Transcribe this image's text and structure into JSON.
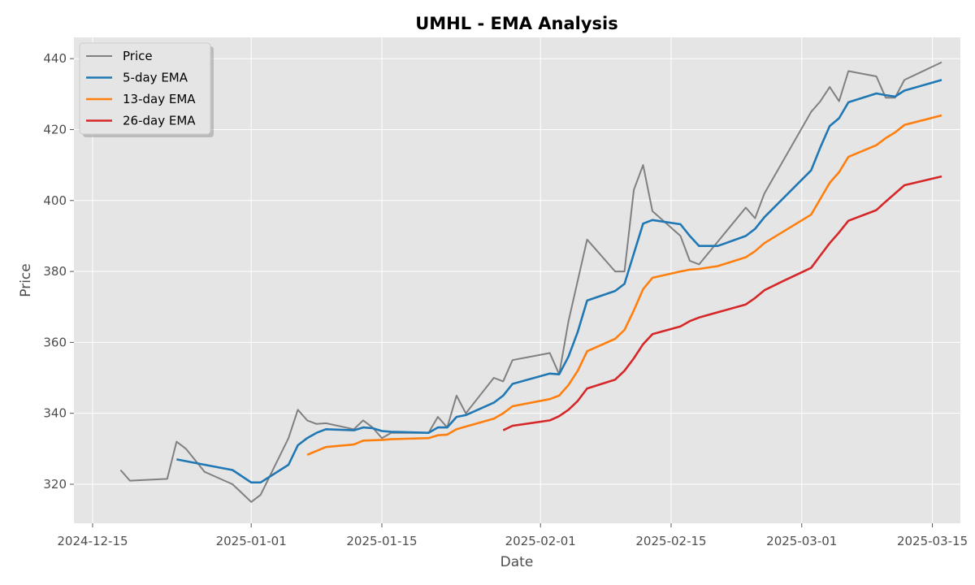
{
  "chart_data": {
    "type": "line",
    "title": "UMHL - EMA Analysis",
    "xlabel": "Date",
    "ylabel": "Price",
    "xlim": [
      "2024-12-13",
      "2025-03-18"
    ],
    "ylim": [
      309,
      446
    ],
    "x_ticks": [
      "2024-12-15",
      "2025-01-01",
      "2025-01-15",
      "2025-02-01",
      "2025-02-15",
      "2025-03-01",
      "2025-03-15"
    ],
    "y_ticks": [
      320,
      340,
      360,
      380,
      400,
      420,
      440
    ],
    "grid": true,
    "legend_position": "top-left",
    "series": [
      {
        "name": "Price",
        "color": "#808080",
        "points": [
          [
            "2024-12-18",
            324
          ],
          [
            "2024-12-19",
            321
          ],
          [
            "2024-12-23",
            321.5
          ],
          [
            "2024-12-24",
            332
          ],
          [
            "2024-12-25",
            330
          ],
          [
            "2024-12-27",
            323.5
          ],
          [
            "2024-12-30",
            320
          ],
          [
            "2024-12-31",
            317.5
          ],
          [
            "2025-01-01",
            315
          ],
          [
            "2025-01-02",
            317
          ],
          [
            "2025-01-05",
            333
          ],
          [
            "2025-01-06",
            341
          ],
          [
            "2025-01-07",
            338
          ],
          [
            "2025-01-08",
            337
          ],
          [
            "2025-01-09",
            337.2
          ],
          [
            "2025-01-12",
            335.5
          ],
          [
            "2025-01-13",
            338
          ],
          [
            "2025-01-14",
            336
          ],
          [
            "2025-01-15",
            333
          ],
          [
            "2025-01-16",
            334.5
          ],
          [
            "2025-01-20",
            334.5
          ],
          [
            "2025-01-21",
            339
          ],
          [
            "2025-01-22",
            336
          ],
          [
            "2025-01-23",
            345
          ],
          [
            "2025-01-24",
            340
          ],
          [
            "2025-01-27",
            350
          ],
          [
            "2025-01-28",
            349
          ],
          [
            "2025-01-29",
            355
          ],
          [
            "2025-02-02",
            357
          ],
          [
            "2025-02-03",
            351
          ],
          [
            "2025-02-04",
            366
          ],
          [
            "2025-02-06",
            389
          ],
          [
            "2025-02-09",
            380
          ],
          [
            "2025-02-10",
            380
          ],
          [
            "2025-02-11",
            403
          ],
          [
            "2025-02-12",
            410
          ],
          [
            "2025-02-13",
            397
          ],
          [
            "2025-02-16",
            390
          ],
          [
            "2025-02-17",
            383
          ],
          [
            "2025-02-18",
            382
          ],
          [
            "2025-02-23",
            398
          ],
          [
            "2025-02-24",
            395
          ],
          [
            "2025-02-25",
            402
          ],
          [
            "2025-03-02",
            425
          ],
          [
            "2025-03-03",
            428
          ],
          [
            "2025-03-04",
            432
          ],
          [
            "2025-03-05",
            428
          ],
          [
            "2025-03-06",
            436.5
          ],
          [
            "2025-03-09",
            435
          ],
          [
            "2025-03-10",
            429
          ],
          [
            "2025-03-11",
            429
          ],
          [
            "2025-03-12",
            434
          ],
          [
            "2025-03-16",
            439
          ]
        ]
      },
      {
        "name": "5-day EMA",
        "color": "#1f77b4",
        "points": [
          [
            "2024-12-24",
            327
          ],
          [
            "2024-12-27",
            325.5
          ],
          [
            "2024-12-30",
            324
          ],
          [
            "2025-01-01",
            320.5
          ],
          [
            "2025-01-02",
            320.5
          ],
          [
            "2025-01-05",
            325.5
          ],
          [
            "2025-01-06",
            331
          ],
          [
            "2025-01-07",
            333
          ],
          [
            "2025-01-08",
            334.5
          ],
          [
            "2025-01-09",
            335.5
          ],
          [
            "2025-01-12",
            335.2
          ],
          [
            "2025-01-13",
            336
          ],
          [
            "2025-01-14",
            335.8
          ],
          [
            "2025-01-15",
            335
          ],
          [
            "2025-01-16",
            334.8
          ],
          [
            "2025-01-20",
            334.5
          ],
          [
            "2025-01-21",
            336
          ],
          [
            "2025-01-22",
            336
          ],
          [
            "2025-01-23",
            339
          ],
          [
            "2025-01-24",
            339.5
          ],
          [
            "2025-01-27",
            343
          ],
          [
            "2025-01-28",
            345
          ],
          [
            "2025-01-29",
            348.3
          ],
          [
            "2025-02-02",
            351.2
          ],
          [
            "2025-02-03",
            351
          ],
          [
            "2025-02-04",
            356
          ],
          [
            "2025-02-05",
            363
          ],
          [
            "2025-02-06",
            371.8
          ],
          [
            "2025-02-09",
            374.5
          ],
          [
            "2025-02-10",
            376.5
          ],
          [
            "2025-02-12",
            393.5
          ],
          [
            "2025-02-13",
            394.5
          ],
          [
            "2025-02-16",
            393.3
          ],
          [
            "2025-02-17",
            390
          ],
          [
            "2025-02-18",
            387.2
          ],
          [
            "2025-02-20",
            387.2
          ],
          [
            "2025-02-23",
            390
          ],
          [
            "2025-02-24",
            392
          ],
          [
            "2025-02-25",
            395.3
          ],
          [
            "2025-03-02",
            408.5
          ],
          [
            "2025-03-03",
            415
          ],
          [
            "2025-03-04",
            421
          ],
          [
            "2025-03-05",
            423.2
          ],
          [
            "2025-03-06",
            427.7
          ],
          [
            "2025-03-09",
            430.2
          ],
          [
            "2025-03-10",
            429.7
          ],
          [
            "2025-03-11",
            429.3
          ],
          [
            "2025-03-12",
            431
          ],
          [
            "2025-03-16",
            434
          ]
        ]
      },
      {
        "name": "13-day EMA",
        "color": "#ff7f0e",
        "points": [
          [
            "2025-01-07",
            328.3
          ],
          [
            "2025-01-09",
            330.5
          ],
          [
            "2025-01-12",
            331.2
          ],
          [
            "2025-01-13",
            332.3
          ],
          [
            "2025-01-15",
            332.5
          ],
          [
            "2025-01-16",
            332.7
          ],
          [
            "2025-01-20",
            333
          ],
          [
            "2025-01-21",
            333.8
          ],
          [
            "2025-01-22",
            334
          ],
          [
            "2025-01-23",
            335.5
          ],
          [
            "2025-01-27",
            338.5
          ],
          [
            "2025-01-28",
            340
          ],
          [
            "2025-01-29",
            342
          ],
          [
            "2025-02-02",
            344
          ],
          [
            "2025-02-03",
            345
          ],
          [
            "2025-02-04",
            348
          ],
          [
            "2025-02-05",
            352
          ],
          [
            "2025-02-06",
            357.5
          ],
          [
            "2025-02-09",
            361
          ],
          [
            "2025-02-10",
            363.5
          ],
          [
            "2025-02-11",
            369
          ],
          [
            "2025-02-12",
            375
          ],
          [
            "2025-02-13",
            378.2
          ],
          [
            "2025-02-16",
            380
          ],
          [
            "2025-02-17",
            380.5
          ],
          [
            "2025-02-18",
            380.7
          ],
          [
            "2025-02-20",
            381.5
          ],
          [
            "2025-02-23",
            384
          ],
          [
            "2025-02-24",
            385.7
          ],
          [
            "2025-02-25",
            388
          ],
          [
            "2025-03-02",
            396
          ],
          [
            "2025-03-03",
            400.5
          ],
          [
            "2025-03-04",
            405
          ],
          [
            "2025-03-05",
            408
          ],
          [
            "2025-03-06",
            412.3
          ],
          [
            "2025-03-09",
            415.6
          ],
          [
            "2025-03-10",
            417.6
          ],
          [
            "2025-03-11",
            419.2
          ],
          [
            "2025-03-12",
            421.3
          ],
          [
            "2025-03-16",
            424
          ]
        ]
      },
      {
        "name": "26-day EMA",
        "color": "#d62728",
        "points": [
          [
            "2025-01-28",
            335.2
          ],
          [
            "2025-01-29",
            336.5
          ],
          [
            "2025-02-02",
            338
          ],
          [
            "2025-02-03",
            339.2
          ],
          [
            "2025-02-04",
            341
          ],
          [
            "2025-02-05",
            343.5
          ],
          [
            "2025-02-06",
            347
          ],
          [
            "2025-02-09",
            349.5
          ],
          [
            "2025-02-10",
            352
          ],
          [
            "2025-02-11",
            355.5
          ],
          [
            "2025-02-12",
            359.5
          ],
          [
            "2025-02-13",
            362.3
          ],
          [
            "2025-02-16",
            364.5
          ],
          [
            "2025-02-17",
            366
          ],
          [
            "2025-02-18",
            367
          ],
          [
            "2025-02-23",
            370.7
          ],
          [
            "2025-02-24",
            372.5
          ],
          [
            "2025-02-25",
            374.7
          ],
          [
            "2025-02-27",
            377.3
          ],
          [
            "2025-03-02",
            381
          ],
          [
            "2025-03-03",
            384.5
          ],
          [
            "2025-03-04",
            388
          ],
          [
            "2025-03-05",
            391
          ],
          [
            "2025-03-06",
            394.3
          ],
          [
            "2025-03-09",
            397.3
          ],
          [
            "2025-03-10",
            399.7
          ],
          [
            "2025-03-11",
            402
          ],
          [
            "2025-03-12",
            404.3
          ],
          [
            "2025-03-16",
            406.8
          ]
        ]
      }
    ]
  }
}
